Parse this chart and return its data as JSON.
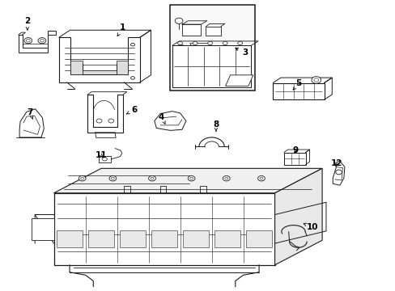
{
  "background_color": "#ffffff",
  "line_color": "#1a1a1a",
  "text_color": "#000000",
  "figsize": [
    4.89,
    3.6
  ],
  "dpi": 100,
  "label_positions": {
    "1": [
      0.31,
      0.908,
      0.295,
      0.875
    ],
    "2": [
      0.068,
      0.93,
      0.068,
      0.896
    ],
    "3": [
      0.62,
      0.82,
      0.588,
      0.84
    ],
    "4": [
      0.408,
      0.598,
      0.418,
      0.572
    ],
    "5": [
      0.755,
      0.715,
      0.74,
      0.69
    ],
    "6": [
      0.338,
      0.622,
      0.318,
      0.608
    ],
    "7": [
      0.075,
      0.614,
      0.082,
      0.59
    ],
    "8": [
      0.546,
      0.572,
      0.546,
      0.548
    ],
    "9": [
      0.748,
      0.482,
      0.742,
      0.468
    ],
    "10": [
      0.79,
      0.218,
      0.766,
      0.232
    ],
    "11": [
      0.255,
      0.466,
      0.264,
      0.454
    ],
    "12": [
      0.852,
      0.438,
      0.848,
      0.428
    ]
  }
}
